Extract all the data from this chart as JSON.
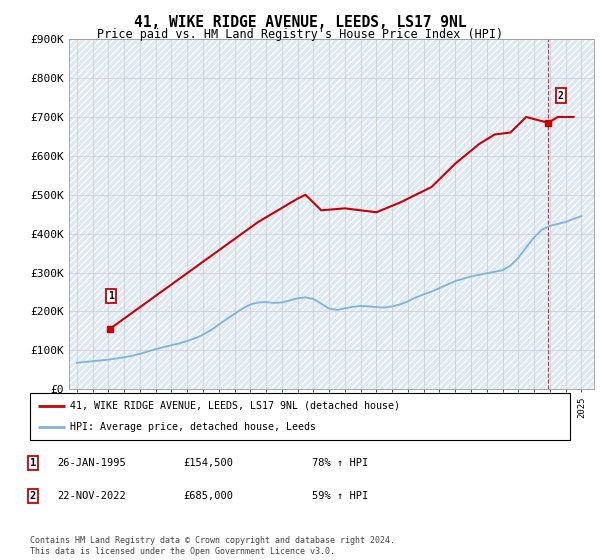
{
  "title": "41, WIKE RIDGE AVENUE, LEEDS, LS17 9NL",
  "subtitle": "Price paid vs. HM Land Registry's House Price Index (HPI)",
  "legend_line1": "41, WIKE RIDGE AVENUE, LEEDS, LS17 9NL (detached house)",
  "legend_line2": "HPI: Average price, detached house, Leeds",
  "footnote": "Contains HM Land Registry data © Crown copyright and database right 2024.\nThis data is licensed under the Open Government Licence v3.0.",
  "annotation1_date": "26-JAN-1995",
  "annotation1_price": "£154,500",
  "annotation1_hpi": "78% ↑ HPI",
  "annotation2_date": "22-NOV-2022",
  "annotation2_price": "£685,000",
  "annotation2_hpi": "59% ↑ HPI",
  "ylim": [
    0,
    900000
  ],
  "yticks": [
    0,
    100000,
    200000,
    300000,
    400000,
    500000,
    600000,
    700000,
    800000,
    900000
  ],
  "ytick_labels": [
    "£0",
    "£100K",
    "£200K",
    "£300K",
    "£400K",
    "£500K",
    "£600K",
    "£700K",
    "£800K",
    "£900K"
  ],
  "xlim_start": 1992.5,
  "xlim_end": 2025.8,
  "background_color": "#dce9f5",
  "red_line_color": "#cc0000",
  "blue_line_color": "#7fb3d9",
  "grid_color": "#cccccc",
  "marker1_x": 1995.07,
  "marker1_y": 154500,
  "marker2_x": 2022.9,
  "marker2_y": 685000,
  "hpi_data_x": [
    1993.0,
    1993.5,
    1994.0,
    1994.5,
    1995.0,
    1995.5,
    1996.0,
    1996.5,
    1997.0,
    1997.5,
    1998.0,
    1998.5,
    1999.0,
    1999.5,
    2000.0,
    2000.5,
    2001.0,
    2001.5,
    2002.0,
    2002.5,
    2003.0,
    2003.5,
    2004.0,
    2004.5,
    2005.0,
    2005.5,
    2006.0,
    2006.5,
    2007.0,
    2007.5,
    2008.0,
    2008.5,
    2009.0,
    2009.5,
    2010.0,
    2010.5,
    2011.0,
    2011.5,
    2012.0,
    2012.5,
    2013.0,
    2013.5,
    2014.0,
    2014.5,
    2015.0,
    2015.5,
    2016.0,
    2016.5,
    2017.0,
    2017.5,
    2018.0,
    2018.5,
    2019.0,
    2019.5,
    2020.0,
    2020.5,
    2021.0,
    2021.5,
    2022.0,
    2022.5,
    2023.0,
    2023.5,
    2024.0,
    2024.5,
    2025.0
  ],
  "hpi_data_y": [
    68000,
    70000,
    72000,
    74000,
    76000,
    79000,
    82000,
    86000,
    91000,
    97000,
    103000,
    108000,
    113000,
    118000,
    124000,
    131000,
    140000,
    152000,
    166000,
    180000,
    194000,
    207000,
    218000,
    223000,
    224000,
    222000,
    223000,
    228000,
    234000,
    236000,
    232000,
    220000,
    207000,
    204000,
    208000,
    212000,
    214000,
    213000,
    211000,
    210000,
    213000,
    218000,
    226000,
    236000,
    244000,
    251000,
    260000,
    269000,
    278000,
    284000,
    290000,
    294000,
    298000,
    302000,
    306000,
    318000,
    338000,
    365000,
    390000,
    410000,
    420000,
    425000,
    430000,
    438000,
    445000
  ],
  "price_data_x": [
    1995.07,
    2004.5,
    2007.0,
    2007.5,
    2008.5,
    2010.0,
    2011.0,
    2012.0,
    2013.5,
    2015.5,
    2017.0,
    2018.5,
    2019.5,
    2020.5,
    2021.5,
    2022.9,
    2023.5,
    2024.5
  ],
  "price_data_y": [
    154500,
    430000,
    490000,
    500000,
    460000,
    465000,
    460000,
    455000,
    480000,
    520000,
    580000,
    630000,
    655000,
    660000,
    700000,
    685000,
    700000,
    700000
  ]
}
